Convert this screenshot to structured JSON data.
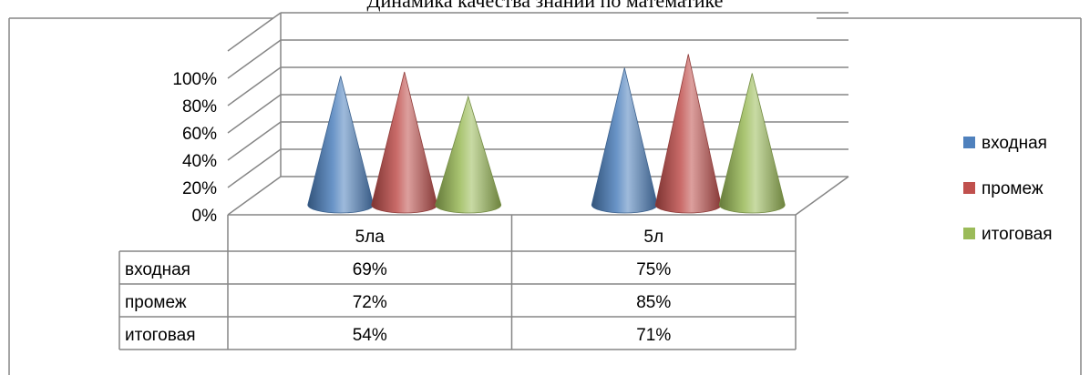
{
  "chart_data": {
    "type": "bar",
    "shape": "cone-3d",
    "title": "Динамика качества знаний по математике",
    "categories": [
      "5ла",
      "5л"
    ],
    "series": [
      {
        "name": "входная",
        "values": [
          69,
          75
        ],
        "color": "#4F81BD"
      },
      {
        "name": "промеж",
        "values": [
          72,
          85
        ],
        "color": "#C0504D"
      },
      {
        "name": "итоговая",
        "values": [
          54,
          71
        ],
        "color": "#9BBB59"
      }
    ],
    "value_labels": {
      "входная": [
        "69%",
        "75%"
      ],
      "промеж": [
        "72%",
        "85%"
      ],
      "итоговая": [
        "54%",
        "71%"
      ]
    },
    "y_ticks": [
      "0%",
      "20%",
      "40%",
      "60%",
      "80%",
      "100%"
    ],
    "ylim": [
      0,
      100
    ],
    "grid": true,
    "legend_position": "right",
    "data_table": true
  }
}
